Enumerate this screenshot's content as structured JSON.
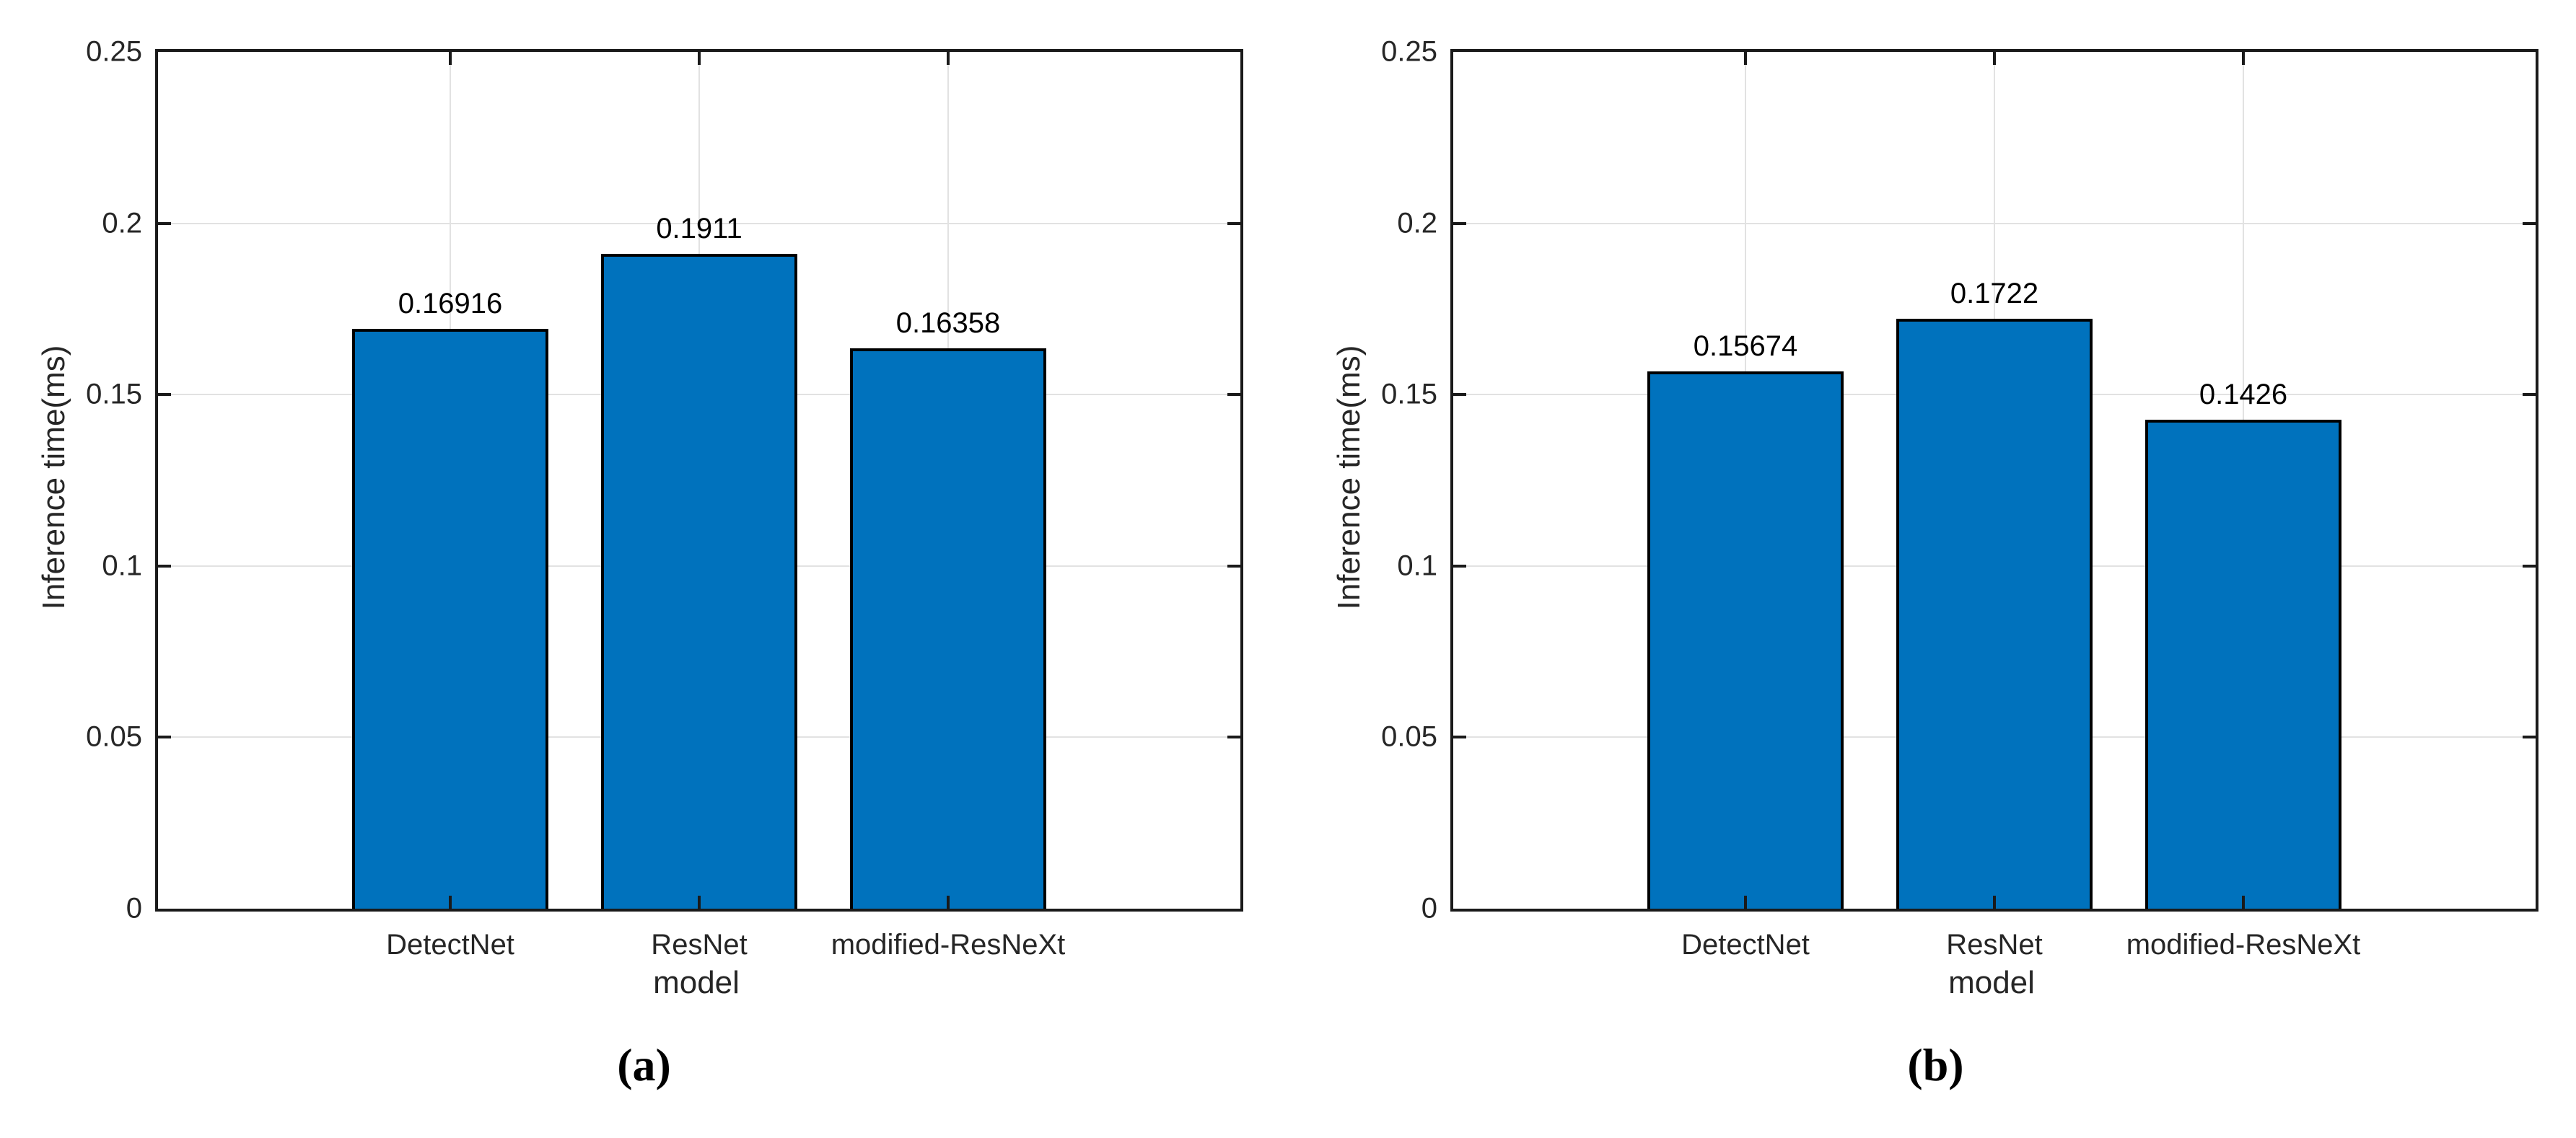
{
  "chart_data": [
    {
      "type": "bar",
      "caption": "(a)",
      "title": "",
      "xlabel": "model",
      "ylabel": "Inference time(ms)",
      "categories": [
        "DetectNet",
        "ResNet",
        "modified-ResNeXt"
      ],
      "values": [
        0.16916,
        0.1911,
        0.16358
      ],
      "value_labels": [
        "0.16916",
        "0.1911",
        "0.16358"
      ],
      "ylim": [
        0,
        0.25
      ],
      "ytick_labels": [
        "0.25",
        "0.2",
        "0.15",
        "0.1",
        "0.05",
        "0"
      ],
      "grid": "on",
      "legend": "none",
      "bar_color": "#0072BD",
      "bar_edge_color": "#000000",
      "gridline_color": "#e2e2e2"
    },
    {
      "type": "bar",
      "caption": "(b)",
      "title": "",
      "xlabel": "model",
      "ylabel": "Inference time(ms)",
      "categories": [
        "DetectNet",
        "ResNet",
        "modified-ResNeXt"
      ],
      "values": [
        0.15674,
        0.1722,
        0.1426
      ],
      "value_labels": [
        "0.15674",
        "0.1722",
        "0.1426"
      ],
      "ylim": [
        0,
        0.25
      ],
      "ytick_labels": [
        "0.25",
        "0.2",
        "0.15",
        "0.1",
        "0.05",
        "0"
      ],
      "grid": "on",
      "legend": "none",
      "bar_color": "#0072BD",
      "bar_edge_color": "#000000",
      "gridline_color": "#e2e2e2"
    }
  ]
}
